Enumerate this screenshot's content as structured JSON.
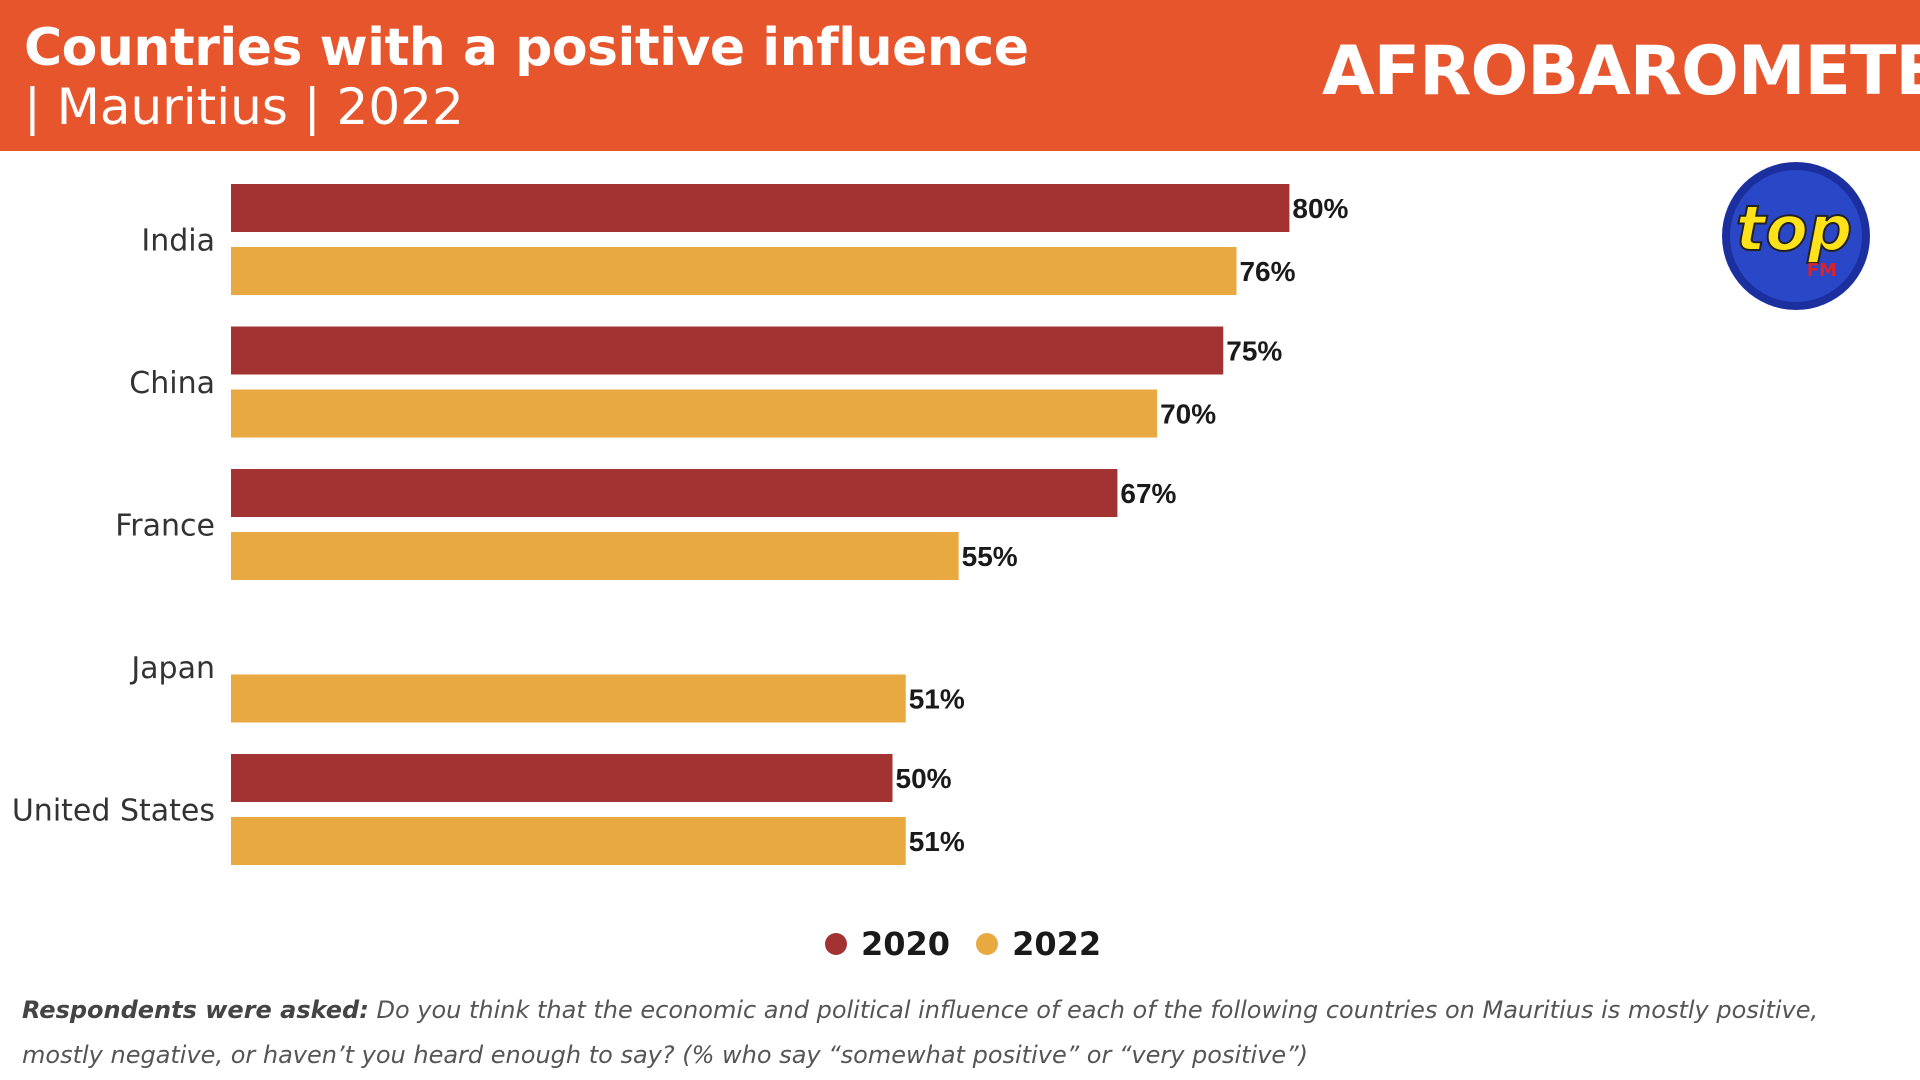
{
  "header": {
    "title_line1": "Countries with a positive influence",
    "title_line2": "| Mauritius | 2022",
    "brand": "AFROBAROMETER",
    "topfm_main": "top",
    "topfm_sub": "FM"
  },
  "colors": {
    "header_bg": "#e6552c",
    "series_2020": "#a33232",
    "series_2022": "#e9a941"
  },
  "legend": [
    {
      "label": "2020",
      "color": "#a33232"
    },
    {
      "label": "2022",
      "color": "#e9a941"
    }
  ],
  "footnote": {
    "lead": "Respondents were asked:",
    "text": "Do you think that the economic and political influence of each of the  following countries on Mauritius is mostly positive, mostly negative, or haven’t you heard enough to  say? (% who say “somewhat positive” or “very positive”)"
  },
  "chart_data": {
    "type": "bar",
    "orientation": "horizontal",
    "categories": [
      "India",
      "China",
      "France",
      "Japan",
      "United States"
    ],
    "series": [
      {
        "name": "2020",
        "values": [
          80,
          75,
          67,
          null,
          50
        ]
      },
      {
        "name": "2022",
        "values": [
          76,
          70,
          55,
          51,
          51
        ]
      }
    ],
    "value_suffix": "%",
    "xlim": [
      0,
      100
    ],
    "grid": false,
    "legend_position": "bottom"
  }
}
